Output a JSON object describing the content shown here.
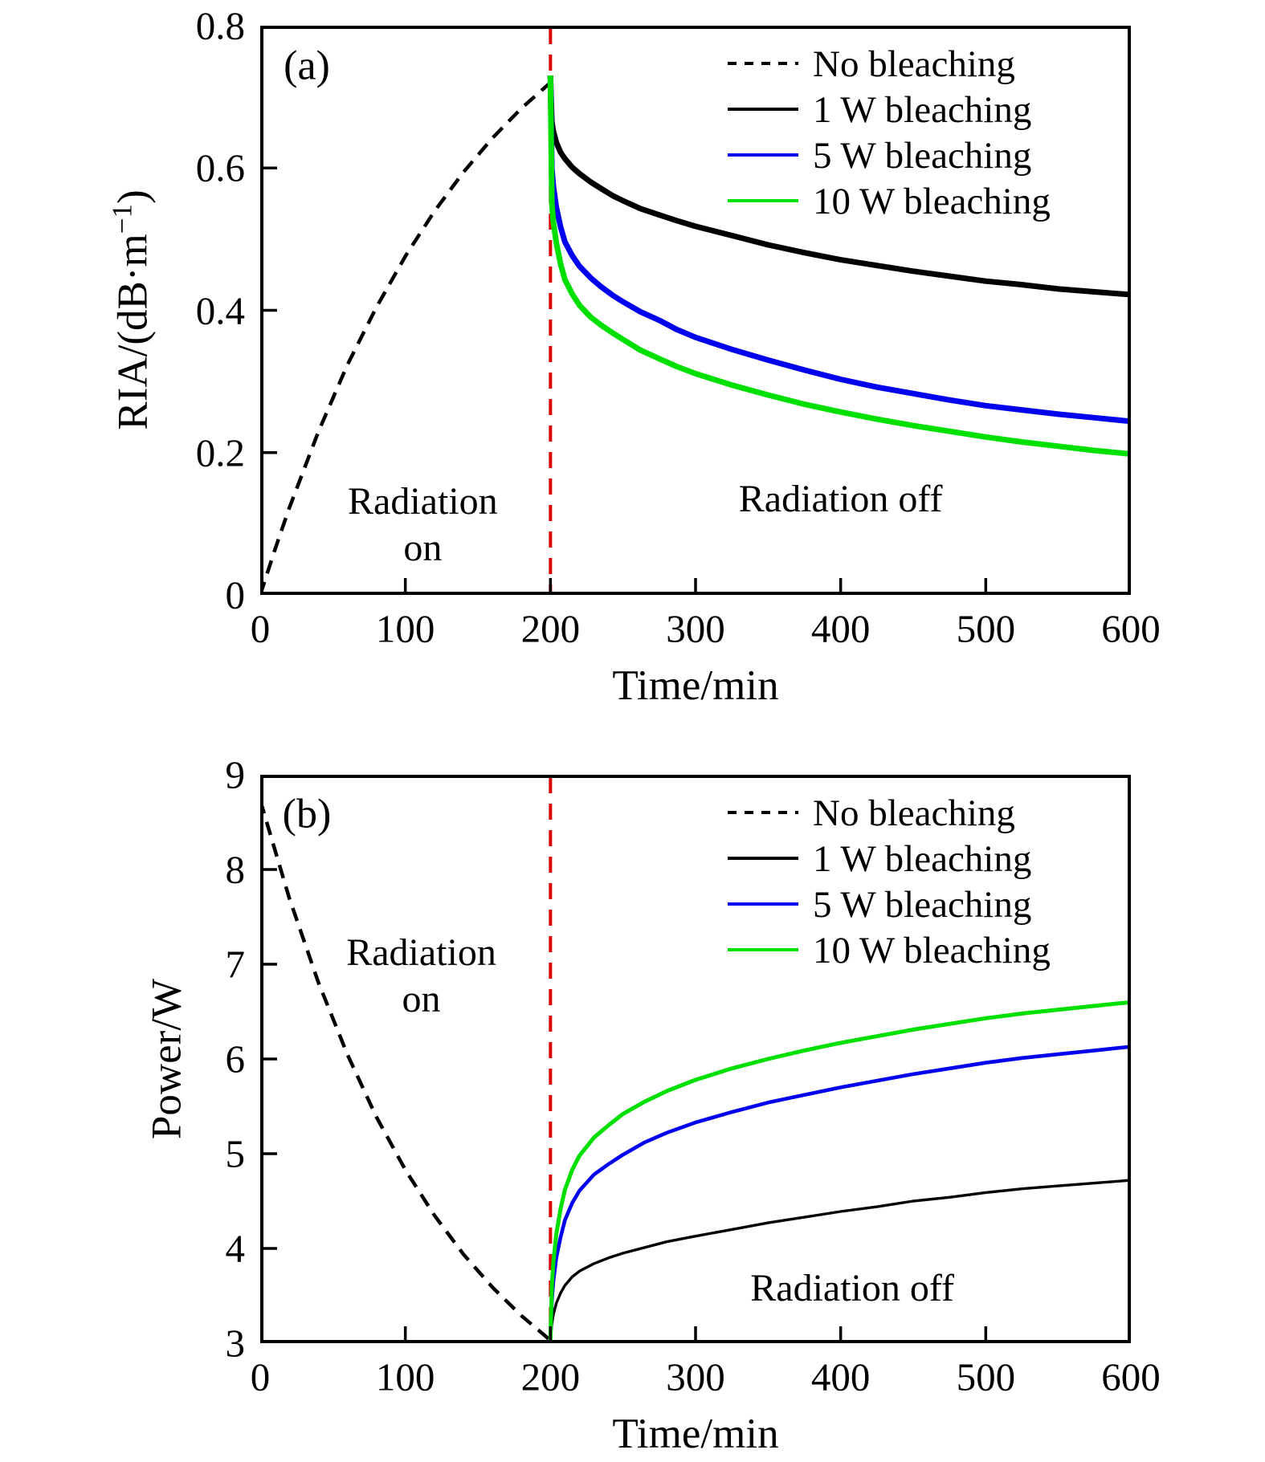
{
  "figure": {
    "background": "#ffffff",
    "axis_color": "#000000",
    "event_line_color": "#dd0000"
  },
  "legend_items": [
    {
      "id": "no-bleaching",
      "label": "No bleaching",
      "color": "#000000",
      "dash": true
    },
    {
      "id": "bleaching-1w",
      "label": "1 W bleaching",
      "color": "#000000",
      "dash": false
    },
    {
      "id": "bleaching-5w",
      "label": "5 W bleaching",
      "color": "#0000ee",
      "dash": false
    },
    {
      "id": "bleaching-10w",
      "label": "10 W bleaching",
      "color": "#00e000",
      "dash": false
    }
  ],
  "chart_data": [
    {
      "type": "line",
      "panel_label": "(a)",
      "xlabel": "Time/min",
      "ylabel": {
        "pre": "RIA/(dB·m",
        "sup": "−1",
        "post": ")"
      },
      "xlim": [
        0,
        600
      ],
      "ylim": [
        0,
        0.8
      ],
      "x_ticks": [
        0,
        100,
        200,
        300,
        400,
        500,
        600
      ],
      "x_tick_labels": [
        "0",
        "100",
        "200",
        "300",
        "400",
        "500",
        "600"
      ],
      "y_ticks": [
        0,
        0.2,
        0.4,
        0.6,
        0.8
      ],
      "y_tick_labels": [
        "0",
        "0.2",
        "0.4",
        "0.6",
        "0.8"
      ],
      "grid": false,
      "legend_position": "top-right",
      "event_line_x": 200,
      "annotations": [
        {
          "id": "radiation-on",
          "lines": [
            "Radiation",
            "on"
          ],
          "x": 112,
          "y": 0.098
        },
        {
          "id": "radiation-off",
          "lines": [
            "Radiation off"
          ],
          "x": 400,
          "y": 0.134
        }
      ],
      "series": [
        {
          "id": "no-bleaching",
          "name": "No bleaching",
          "color": "#000000",
          "width": 4.5,
          "dash": [
            17,
            11
          ],
          "points": [
            [
              0,
              0
            ],
            [
              10,
              0.063
            ],
            [
              20,
              0.122
            ],
            [
              40,
              0.229
            ],
            [
              60,
              0.323
            ],
            [
              80,
              0.404
            ],
            [
              100,
              0.476
            ],
            [
              120,
              0.539
            ],
            [
              140,
              0.594
            ],
            [
              160,
              0.642
            ],
            [
              180,
              0.684
            ],
            [
              200,
              0.72
            ]
          ]
        },
        {
          "id": "bleaching-1w",
          "name": "1 W bleaching",
          "color": "#000000",
          "width": 7,
          "dash": null,
          "points": [
            [
              200,
              0.73
            ],
            [
              201,
              0.665
            ],
            [
              202,
              0.652
            ],
            [
              204,
              0.636
            ],
            [
              207,
              0.622
            ],
            [
              210,
              0.613
            ],
            [
              215,
              0.601
            ],
            [
              220,
              0.592
            ],
            [
              228,
              0.58
            ],
            [
              235,
              0.571
            ],
            [
              243,
              0.561
            ],
            [
              250,
              0.554
            ],
            [
              262,
              0.543
            ],
            [
              275,
              0.534
            ],
            [
              287,
              0.526
            ],
            [
              300,
              0.518
            ],
            [
              325,
              0.505
            ],
            [
              350,
              0.492
            ],
            [
              375,
              0.481
            ],
            [
              400,
              0.471
            ],
            [
              425,
              0.463
            ],
            [
              450,
              0.455
            ],
            [
              475,
              0.448
            ],
            [
              500,
              0.441
            ],
            [
              525,
              0.436
            ],
            [
              550,
              0.43
            ],
            [
              575,
              0.426
            ],
            [
              600,
              0.422
            ]
          ]
        },
        {
          "id": "bleaching-5w",
          "name": "5 W bleaching",
          "color": "#0000ee",
          "width": 7,
          "dash": null,
          "points": [
            [
              200,
              0.73
            ],
            [
              201,
              0.6
            ],
            [
              202,
              0.575
            ],
            [
              204,
              0.545
            ],
            [
              207,
              0.517
            ],
            [
              210,
              0.496
            ],
            [
              215,
              0.477
            ],
            [
              220,
              0.462
            ],
            [
              228,
              0.445
            ],
            [
              235,
              0.433
            ],
            [
              243,
              0.421
            ],
            [
              250,
              0.412
            ],
            [
              262,
              0.398
            ],
            [
              275,
              0.386
            ],
            [
              287,
              0.373
            ],
            [
              300,
              0.362
            ],
            [
              325,
              0.345
            ],
            [
              350,
              0.33
            ],
            [
              375,
              0.316
            ],
            [
              400,
              0.303
            ],
            [
              425,
              0.292
            ],
            [
              450,
              0.283
            ],
            [
              475,
              0.274
            ],
            [
              500,
              0.266
            ],
            [
              525,
              0.26
            ],
            [
              550,
              0.254
            ],
            [
              575,
              0.249
            ],
            [
              600,
              0.244
            ]
          ]
        },
        {
          "id": "bleaching-10w",
          "name": "10 W bleaching",
          "color": "#00e000",
          "width": 7,
          "dash": null,
          "points": [
            [
              200,
              0.73
            ],
            [
              201,
              0.55
            ],
            [
              202,
              0.525
            ],
            [
              204,
              0.495
            ],
            [
              207,
              0.465
            ],
            [
              210,
              0.443
            ],
            [
              215,
              0.423
            ],
            [
              220,
              0.407
            ],
            [
              228,
              0.39
            ],
            [
              235,
              0.379
            ],
            [
              243,
              0.368
            ],
            [
              250,
              0.359
            ],
            [
              262,
              0.344
            ],
            [
              275,
              0.332
            ],
            [
              287,
              0.321
            ],
            [
              300,
              0.311
            ],
            [
              325,
              0.295
            ],
            [
              350,
              0.281
            ],
            [
              375,
              0.268
            ],
            [
              400,
              0.257
            ],
            [
              425,
              0.247
            ],
            [
              450,
              0.238
            ],
            [
              475,
              0.23
            ],
            [
              500,
              0.222
            ],
            [
              525,
              0.215
            ],
            [
              550,
              0.209
            ],
            [
              575,
              0.203
            ],
            [
              600,
              0.198
            ]
          ]
        }
      ]
    },
    {
      "type": "line",
      "panel_label": "(b)",
      "xlabel": "Time/min",
      "ylabel": {
        "pre": "Power/W",
        "sup": "",
        "post": ""
      },
      "xlim": [
        0,
        600
      ],
      "ylim": [
        3,
        9
      ],
      "x_ticks": [
        0,
        100,
        200,
        300,
        400,
        500,
        600
      ],
      "x_tick_labels": [
        "0",
        "100",
        "200",
        "300",
        "400",
        "500",
        "600"
      ],
      "y_ticks": [
        3,
        4,
        5,
        6,
        7,
        8,
        9
      ],
      "y_tick_labels": [
        "3",
        "4",
        "5",
        "6",
        "7",
        "8",
        "9"
      ],
      "grid": false,
      "legend_position": "top-right",
      "event_line_x": 200,
      "annotations": [
        {
          "id": "radiation-on",
          "lines": [
            "Radiation",
            "on"
          ],
          "x": 111,
          "y": 6.87
        },
        {
          "id": "radiation-off",
          "lines": [
            "Radiation off"
          ],
          "x": 408,
          "y": 3.58
        }
      ],
      "series": [
        {
          "id": "no-bleaching",
          "name": "No bleaching",
          "color": "#000000",
          "width": 4.5,
          "dash": [
            17,
            11
          ],
          "points": [
            [
              0,
              8.73
            ],
            [
              20,
              7.7
            ],
            [
              40,
              6.81
            ],
            [
              60,
              6.05
            ],
            [
              80,
              5.39
            ],
            [
              100,
              4.83
            ],
            [
              120,
              4.35
            ],
            [
              140,
              3.94
            ],
            [
              160,
              3.59
            ],
            [
              180,
              3.29
            ],
            [
              200,
              3.03
            ]
          ]
        },
        {
          "id": "bleaching-1w",
          "name": "1 W bleaching",
          "color": "#000000",
          "width": 3.4,
          "dash": null,
          "points": [
            [
              200,
              3.03
            ],
            [
              201,
              3.2
            ],
            [
              202,
              3.3
            ],
            [
              204,
              3.42
            ],
            [
              207,
              3.53
            ],
            [
              210,
              3.61
            ],
            [
              215,
              3.7
            ],
            [
              220,
              3.76
            ],
            [
              230,
              3.84
            ],
            [
              240,
              3.9
            ],
            [
              250,
              3.95
            ],
            [
              265,
              4.01
            ],
            [
              280,
              4.07
            ],
            [
              300,
              4.13
            ],
            [
              325,
              4.2
            ],
            [
              350,
              4.27
            ],
            [
              375,
              4.33
            ],
            [
              400,
              4.39
            ],
            [
              425,
              4.44
            ],
            [
              450,
              4.5
            ],
            [
              475,
              4.54
            ],
            [
              500,
              4.59
            ],
            [
              525,
              4.63
            ],
            [
              550,
              4.66
            ],
            [
              575,
              4.69
            ],
            [
              600,
              4.72
            ]
          ]
        },
        {
          "id": "bleaching-5w",
          "name": "5 W bleaching",
          "color": "#0000ee",
          "width": 4.6,
          "dash": null,
          "points": [
            [
              200,
              3.03
            ],
            [
              201,
              3.45
            ],
            [
              202,
              3.65
            ],
            [
              204,
              3.9
            ],
            [
              207,
              4.12
            ],
            [
              210,
              4.3
            ],
            [
              215,
              4.48
            ],
            [
              220,
              4.61
            ],
            [
              230,
              4.78
            ],
            [
              240,
              4.89
            ],
            [
              250,
              4.99
            ],
            [
              265,
              5.12
            ],
            [
              280,
              5.22
            ],
            [
              300,
              5.33
            ],
            [
              325,
              5.44
            ],
            [
              350,
              5.54
            ],
            [
              375,
              5.62
            ],
            [
              400,
              5.7
            ],
            [
              425,
              5.77
            ],
            [
              450,
              5.84
            ],
            [
              475,
              5.9
            ],
            [
              500,
              5.96
            ],
            [
              525,
              6.01
            ],
            [
              550,
              6.05
            ],
            [
              575,
              6.09
            ],
            [
              600,
              6.13
            ]
          ]
        },
        {
          "id": "bleaching-10w",
          "name": "10 W bleaching",
          "color": "#00e000",
          "width": 5,
          "dash": null,
          "points": [
            [
              200,
              3.03
            ],
            [
              201,
              3.6
            ],
            [
              202,
              3.85
            ],
            [
              204,
              4.15
            ],
            [
              207,
              4.42
            ],
            [
              210,
              4.62
            ],
            [
              215,
              4.83
            ],
            [
              220,
              4.98
            ],
            [
              230,
              5.17
            ],
            [
              240,
              5.3
            ],
            [
              250,
              5.42
            ],
            [
              265,
              5.55
            ],
            [
              280,
              5.66
            ],
            [
              300,
              5.78
            ],
            [
              325,
              5.9
            ],
            [
              350,
              6.0
            ],
            [
              375,
              6.09
            ],
            [
              400,
              6.17
            ],
            [
              425,
              6.24
            ],
            [
              450,
              6.31
            ],
            [
              475,
              6.37
            ],
            [
              500,
              6.43
            ],
            [
              525,
              6.48
            ],
            [
              550,
              6.52
            ],
            [
              575,
              6.56
            ],
            [
              600,
              6.6
            ]
          ]
        }
      ]
    }
  ]
}
